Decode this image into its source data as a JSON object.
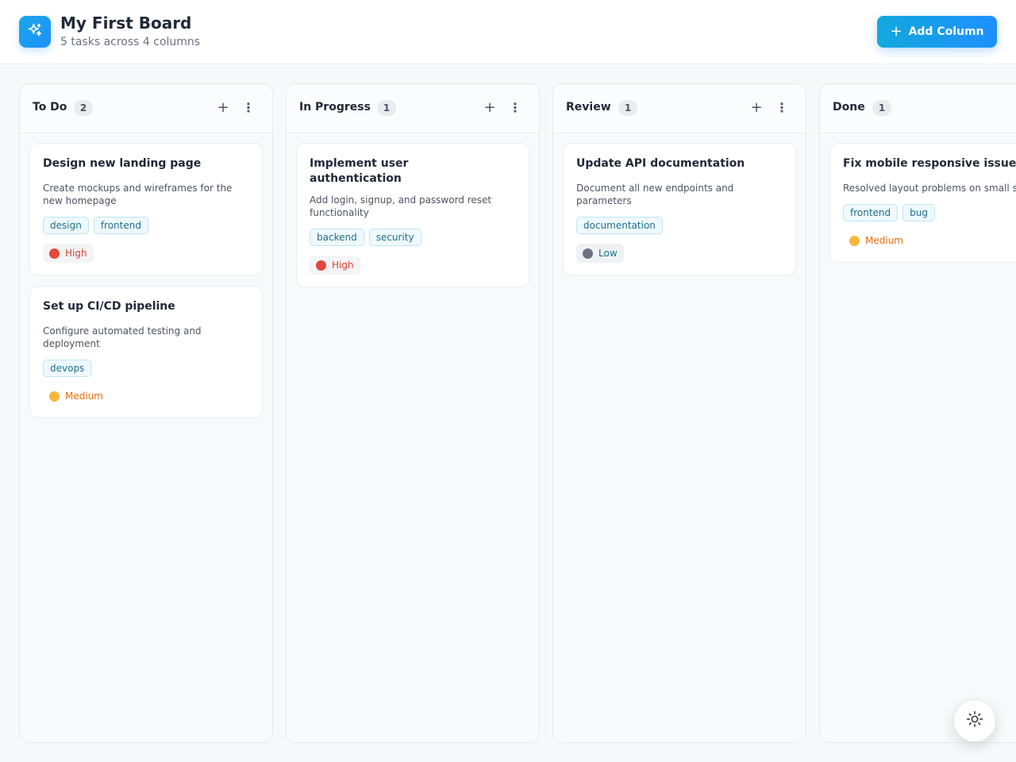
{
  "header": {
    "title": "My First Board",
    "subtitle": "5 tasks across 4 columns",
    "add_column_label": "Add Column",
    "logo_icon": "sparkle-icon"
  },
  "columns": [
    {
      "title": "To Do",
      "count": "2",
      "cards": [
        {
          "title": "Design new landing page",
          "description": "Create mockups and wireframes for the new homepage",
          "tags": [
            "design",
            "frontend"
          ],
          "priority": "High"
        },
        {
          "title": "Set up CI/CD pipeline",
          "description": "Configure automated testing and deployment",
          "tags": [
            "devops"
          ],
          "priority": "Medium"
        }
      ]
    },
    {
      "title": "In Progress",
      "count": "1",
      "cards": [
        {
          "title": "Implement user authentication",
          "description": "Add login, signup, and password reset functionality",
          "tags": [
            "backend",
            "security"
          ],
          "priority": "High"
        }
      ]
    },
    {
      "title": "Review",
      "count": "1",
      "cards": [
        {
          "title": "Update API documentation",
          "description": "Document all new endpoints and parameters",
          "tags": [
            "documentation"
          ],
          "priority": "Low"
        }
      ]
    },
    {
      "title": "Done",
      "count": "1",
      "cards": [
        {
          "title": "Fix mobile responsive issue",
          "description": "Resolved layout problems on small s",
          "tags": [
            "frontend",
            "bug"
          ],
          "priority": "Medium"
        }
      ]
    }
  ],
  "colors": {
    "accent": "#1e90ff",
    "high": "#e5483b",
    "medium": "#f6b73c",
    "low": "#6b7280"
  },
  "theme_toggle_icon": "sun-icon"
}
